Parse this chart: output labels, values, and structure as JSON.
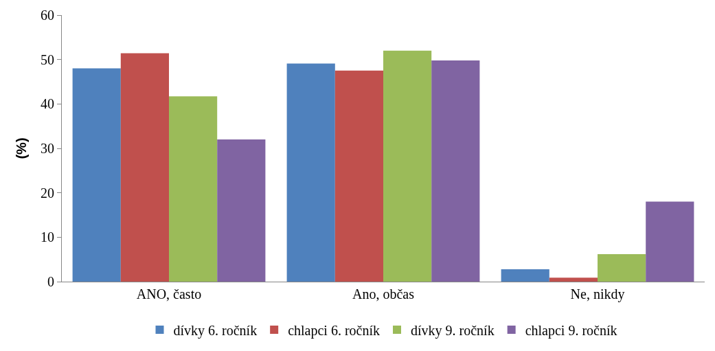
{
  "chart_data": {
    "type": "bar",
    "ylabel": "(%)",
    "categories": [
      "ANO, často",
      "Ano, občas",
      "Ne, nikdy"
    ],
    "series": [
      {
        "name": "dívky 6. ročník",
        "color": "#4f81bd",
        "values": [
          48.0,
          49.1,
          2.8
        ]
      },
      {
        "name": "chlapci 6. ročník",
        "color": "#c0504d",
        "values": [
          51.4,
          47.5,
          0.9
        ]
      },
      {
        "name": "dívky 9. ročník",
        "color": "#9bbb59",
        "values": [
          41.7,
          52.0,
          6.2
        ]
      },
      {
        "name": "chlapci 9. ročník",
        "color": "#8064a2",
        "values": [
          32.0,
          49.8,
          18.0
        ]
      }
    ],
    "ylim": [
      0,
      60
    ],
    "yticks": [
      0,
      10,
      20,
      30,
      40,
      50,
      60
    ],
    "legend": "bottom"
  }
}
